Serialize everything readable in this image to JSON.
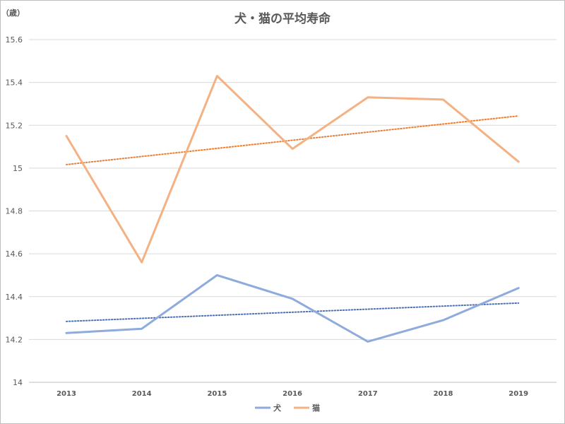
{
  "chart_data": {
    "type": "line",
    "title": "犬・猫の平均寿命",
    "y_unit_label": "（歳）",
    "x": [
      "2013",
      "2014",
      "2015",
      "2016",
      "2017",
      "2018",
      "2019"
    ],
    "ylim": [
      14,
      15.6
    ],
    "yticks": [
      {
        "value": 14,
        "label": "14"
      },
      {
        "value": 14.2,
        "label": "14.2"
      },
      {
        "value": 14.4,
        "label": "14.4"
      },
      {
        "value": 14.6,
        "label": "14.6"
      },
      {
        "value": 14.8,
        "label": "14.8"
      },
      {
        "value": 15,
        "label": "15"
      },
      {
        "value": 15.2,
        "label": "15.2"
      },
      {
        "value": 15.4,
        "label": "15.4"
      },
      {
        "value": 15.6,
        "label": "15.6"
      }
    ],
    "grid": true,
    "legend_position": "bottom",
    "series": [
      {
        "name": "犬",
        "color": "#8faadc",
        "values": [
          14.23,
          14.25,
          14.5,
          14.39,
          14.19,
          14.29,
          14.44
        ],
        "trendline": "linear"
      },
      {
        "name": "猫",
        "color": "#f4b183",
        "values": [
          15.15,
          14.56,
          15.43,
          15.09,
          15.33,
          15.32,
          15.03
        ],
        "trendline": "linear"
      }
    ],
    "trendline_colors": [
      "#4472c4",
      "#ed7d31"
    ]
  }
}
